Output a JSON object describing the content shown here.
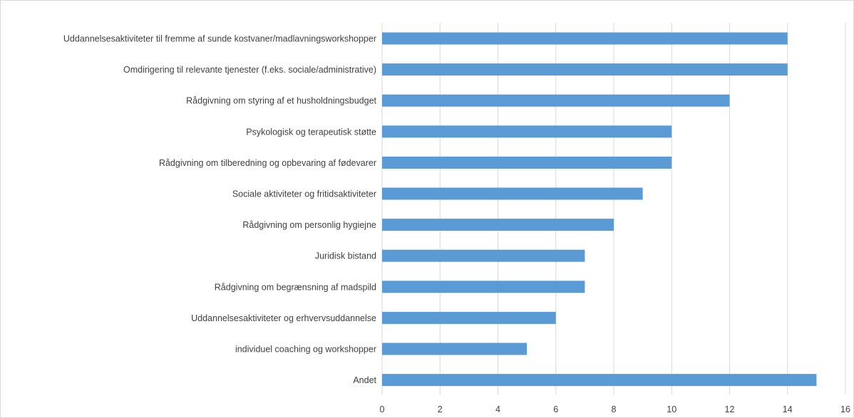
{
  "chart_data": {
    "type": "bar",
    "orientation": "horizontal",
    "categories": [
      "Uddannelsesaktiviteter til fremme af sunde kostvaner/madlavningsworkshopper",
      "Omdirigering til relevante tjenester (f.eks. sociale/administrative)",
      "Rådgivning om styring af et husholdningsbudget",
      "Psykologisk og terapeutisk støtte",
      "Rådgivning om tilberedning og opbevaring af fødevarer",
      "Sociale aktiviteter og fritidsaktiviteter",
      "Rådgivning om personlig hygiejne",
      "Juridisk bistand",
      "Rådgivning om begrænsning af madspild",
      "Uddannelsesaktiviteter og erhvervsuddannelse",
      "individuel coaching og workshopper",
      "Andet"
    ],
    "values": [
      14,
      14,
      12,
      10,
      10,
      9,
      8,
      7,
      7,
      6,
      5,
      15
    ],
    "xlim": [
      0,
      16
    ],
    "xticks": [
      0,
      2,
      4,
      6,
      8,
      10,
      12,
      14,
      16
    ],
    "xtick_labels": [
      "0",
      "2",
      "4",
      "6",
      "8",
      "10",
      "12",
      "14",
      "16"
    ],
    "title": "",
    "xlabel": "",
    "ylabel": "",
    "grid": "vertical",
    "legend": "none",
    "bar_color": "#5b9bd5",
    "grid_color": "#d9d9d9",
    "label_color": "#404040"
  }
}
